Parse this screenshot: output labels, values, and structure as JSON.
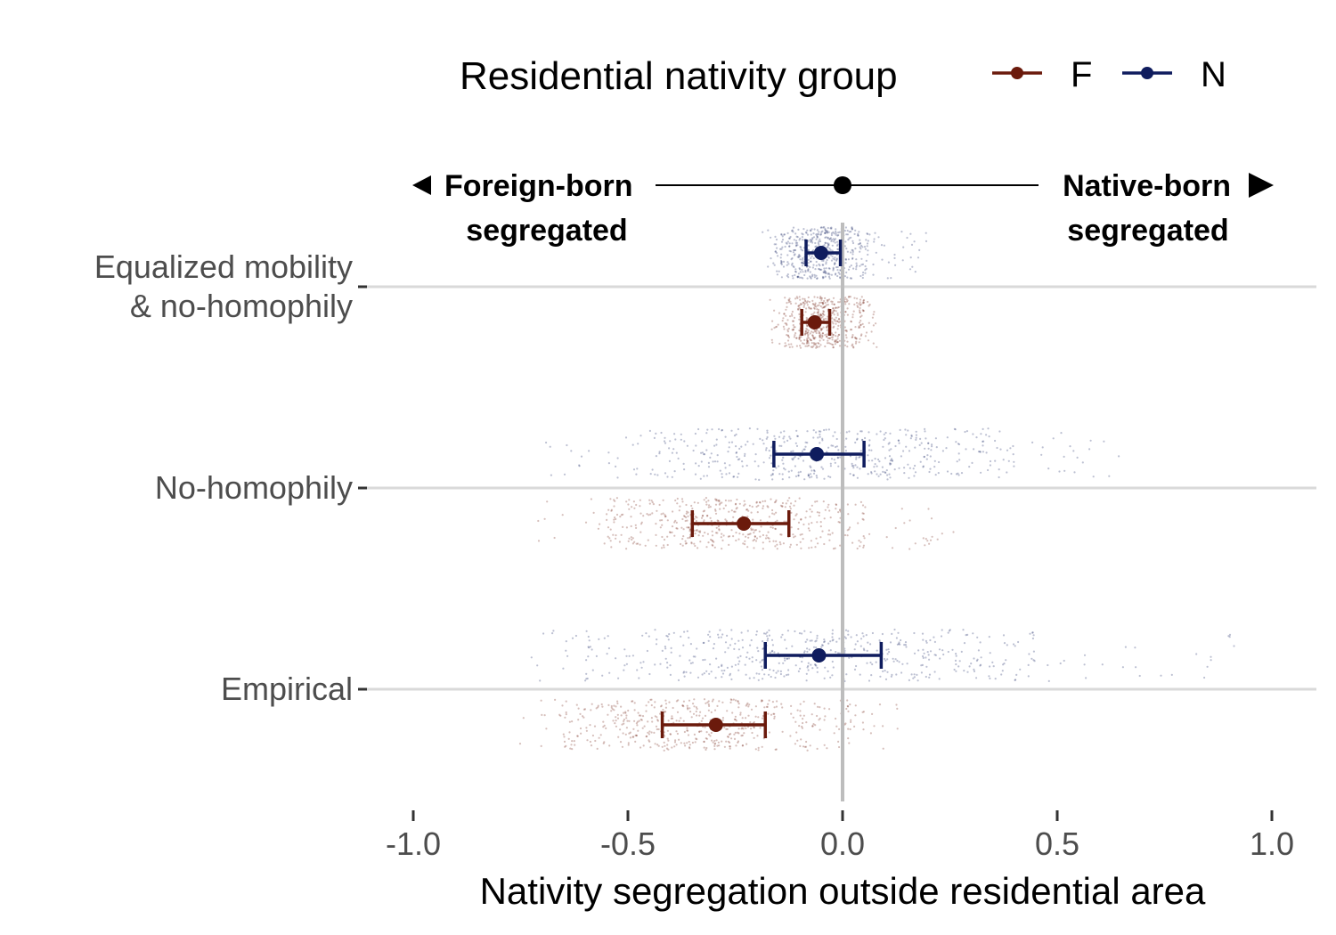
{
  "chart_data": {
    "type": "scatter",
    "xlabel": "Nativity segregation outside residential area",
    "xlim": [
      -1.0,
      1.1
    ],
    "x_ticks": [
      -1.0,
      -0.5,
      0.0,
      0.5,
      1.0
    ],
    "x_tick_labels": [
      "-1.0",
      "-0.5",
      "0.0",
      "0.5",
      "1.0"
    ],
    "categories": [
      "Equalized mobility\n& no-homophily",
      "No-homophily",
      "Empirical"
    ],
    "category_labels": [
      [
        "Equalized mobility",
        "& no-homophily"
      ],
      [
        "No-homophily"
      ],
      [
        "Empirical"
      ]
    ],
    "legend": {
      "title": "Residential nativity group",
      "position": "top",
      "entries": [
        {
          "key": "F",
          "label": "F",
          "color": "#6b1a0c"
        },
        {
          "key": "N",
          "label": "N",
          "color": "#0f1c5e"
        }
      ]
    },
    "annotation": {
      "left": [
        "Foreign-born",
        "segregated"
      ],
      "right": [
        "Native-born",
        "segregated"
      ],
      "center_value": 0.0
    },
    "series": [
      {
        "name": "N",
        "color": "#0f1c5e",
        "points": [
          {
            "category": "Equalized mobility\n& no-homophily",
            "mean": -0.05,
            "lower": -0.085,
            "upper": -0.005,
            "spread": [
              -0.19,
              0.2
            ],
            "core": [
              -0.16,
              0.06
            ]
          },
          {
            "category": "No-homophily",
            "mean": -0.06,
            "lower": -0.16,
            "upper": 0.05,
            "spread": [
              -0.7,
              0.65
            ],
            "core": [
              -0.45,
              0.4
            ]
          },
          {
            "category": "Empirical",
            "mean": -0.055,
            "lower": -0.18,
            "upper": 0.09,
            "spread": [
              -0.74,
              0.92
            ],
            "core": [
              -0.6,
              0.45
            ]
          }
        ]
      },
      {
        "name": "F",
        "color": "#6b1a0c",
        "points": [
          {
            "category": "Equalized mobility\n& no-homophily",
            "mean": -0.065,
            "lower": -0.095,
            "upper": -0.03,
            "spread": [
              -0.17,
              0.08
            ],
            "core": [
              -0.14,
              0.05
            ]
          },
          {
            "category": "No-homophily",
            "mean": -0.23,
            "lower": -0.35,
            "upper": -0.125,
            "spread": [
              -0.71,
              0.27
            ],
            "core": [
              -0.55,
              0.05
            ]
          },
          {
            "category": "Empirical",
            "mean": -0.295,
            "lower": -0.42,
            "upper": -0.18,
            "spread": [
              -0.77,
              0.15
            ],
            "core": [
              -0.65,
              0.02
            ]
          }
        ]
      }
    ],
    "grid": {
      "horizontal": true,
      "vertical": false
    },
    "zero_line": true
  },
  "colors": {
    "F": "#6b1a0c",
    "N": "#0f1c5e",
    "grid": "#d9d9d9",
    "zero_line": "#bdbdbd",
    "tick_text": "#4d4d4d"
  }
}
